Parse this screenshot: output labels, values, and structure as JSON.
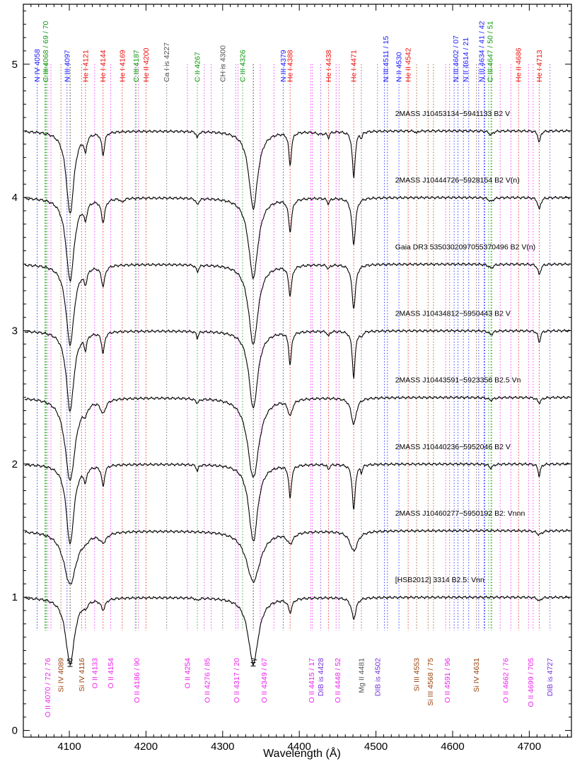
{
  "chart_data": {
    "type": "line",
    "xlabel": "Wavelength (Å)",
    "ylabel": "",
    "xlim": [
      4040,
      4755
    ],
    "ylim": [
      -0.05,
      5.45
    ],
    "x_ticks": [
      4100,
      4200,
      4300,
      4400,
      4500,
      4600,
      4700
    ],
    "y_ticks": [
      0,
      1,
      2,
      3,
      4,
      5
    ],
    "grid": false,
    "colors": {
      "N": "#1a1aff",
      "He": "#ee1111",
      "C": "#119911",
      "O": "#ee22ee",
      "Si": "#994411",
      "DIB": "#7733dd",
      "gray": "#555555",
      "black": "#000000"
    },
    "top_labels": [
      {
        "text": "N IV 4058",
        "x": 4058,
        "color": "N"
      },
      {
        "text": "C III 4068 / 69 / 70",
        "x": 4069,
        "color": "C"
      },
      {
        "text": "N III 4097",
        "x": 4097,
        "color": "N"
      },
      {
        "text": "He I 4121",
        "x": 4121,
        "color": "He"
      },
      {
        "text": "He I 4144",
        "x": 4144,
        "color": "He"
      },
      {
        "text": "He I 4169",
        "x": 4169,
        "color": "He"
      },
      {
        "text": "C III 4187",
        "x": 4187,
        "color": "C"
      },
      {
        "text": "He II 4200",
        "x": 4200,
        "color": "He"
      },
      {
        "text": "Ca I is 4227",
        "x": 4227,
        "color": "gray"
      },
      {
        "text": "C II 4267",
        "x": 4267,
        "color": "C"
      },
      {
        "text": "CH is 4300",
        "x": 4300,
        "color": "gray"
      },
      {
        "text": "C III 4326",
        "x": 4326,
        "color": "C"
      },
      {
        "text": "N III 4379",
        "x": 4379,
        "color": "N"
      },
      {
        "text": "He I 4388",
        "x": 4388,
        "color": "He"
      },
      {
        "text": "He I 4438",
        "x": 4438,
        "color": "He"
      },
      {
        "text": "He I 4471",
        "x": 4471,
        "color": "He"
      },
      {
        "text": "N III 4511 / 15",
        "x": 4513,
        "color": "N"
      },
      {
        "text": "N II 4530",
        "x": 4530,
        "color": "N"
      },
      {
        "text": "He II 4542",
        "x": 4542,
        "color": "He"
      },
      {
        "text": "N III 4602 / 07",
        "x": 4604,
        "color": "N"
      },
      {
        "text": "N II 4614 / 21",
        "x": 4617,
        "color": "N"
      },
      {
        "text": "N III 4634 / 41 / 42",
        "x": 4638,
        "color": "N"
      },
      {
        "text": "C III 4647 / 50 / 51",
        "x": 4649,
        "color": "C"
      },
      {
        "text": "He II 4686",
        "x": 4686,
        "color": "He"
      },
      {
        "text": "He I 4713",
        "x": 4713,
        "color": "He"
      }
    ],
    "bottom_labels": [
      {
        "text": "O II 4070 / 72 / 76",
        "x": 4072,
        "color": "O"
      },
      {
        "text": "Si IV 4089",
        "x": 4089,
        "color": "Si"
      },
      {
        "text": "Hδ",
        "x": 4101,
        "color": "black"
      },
      {
        "text": "Si IV 4116",
        "x": 4116,
        "color": "Si"
      },
      {
        "text": "O II 4133",
        "x": 4133,
        "color": "O"
      },
      {
        "text": "O II 4154",
        "x": 4154,
        "color": "O"
      },
      {
        "text": "O II 4186 / 90",
        "x": 4188,
        "color": "O"
      },
      {
        "text": "O II 4254",
        "x": 4254,
        "color": "O"
      },
      {
        "text": "O II 4276 / 85",
        "x": 4280,
        "color": "O"
      },
      {
        "text": "O II 4317 / 20",
        "x": 4318,
        "color": "O"
      },
      {
        "text": "Hγ",
        "x": 4340,
        "color": "black"
      },
      {
        "text": "O II 4349 / 67",
        "x": 4354,
        "color": "O"
      },
      {
        "text": "O II 4415 / 17",
        "x": 4416,
        "color": "O"
      },
      {
        "text": "DIB is 4428",
        "x": 4428,
        "color": "DIB"
      },
      {
        "text": "O II 4448 / 52",
        "x": 4450,
        "color": "O"
      },
      {
        "text": "Mg II 4481",
        "x": 4481,
        "color": "gray"
      },
      {
        "text": "DIB is 4502",
        "x": 4502,
        "color": "DIB"
      },
      {
        "text": "Si III 4553",
        "x": 4553,
        "color": "Si"
      },
      {
        "text": "Si III 4568 / 75",
        "x": 4571,
        "color": "Si"
      },
      {
        "text": "O II 4591 / 96",
        "x": 4593,
        "color": "O"
      },
      {
        "text": "Si IV 4631",
        "x": 4631,
        "color": "Si"
      },
      {
        "text": "O II 4662 / 76",
        "x": 4669,
        "color": "O"
      },
      {
        "text": "O II 4699 / 705",
        "x": 4702,
        "color": "O"
      },
      {
        "text": "DIB is 4727",
        "x": 4727,
        "color": "DIB"
      }
    ],
    "line_marks": [
      {
        "x": 4058,
        "color": "N"
      },
      {
        "x": 4068,
        "color": "C"
      },
      {
        "x": 4069,
        "color": "C"
      },
      {
        "x": 4070,
        "color": "C"
      },
      {
        "x": 4072,
        "color": "O"
      },
      {
        "x": 4076,
        "color": "O"
      },
      {
        "x": 4089,
        "color": "Si"
      },
      {
        "x": 4097,
        "color": "N"
      },
      {
        "x": 4101,
        "color": "black"
      },
      {
        "x": 4116,
        "color": "Si"
      },
      {
        "x": 4121,
        "color": "He"
      },
      {
        "x": 4133,
        "color": "O"
      },
      {
        "x": 4144,
        "color": "He"
      },
      {
        "x": 4154,
        "color": "O"
      },
      {
        "x": 4169,
        "color": "He"
      },
      {
        "x": 4186,
        "color": "O"
      },
      {
        "x": 4187,
        "color": "C"
      },
      {
        "x": 4190,
        "color": "O"
      },
      {
        "x": 4200,
        "color": "He"
      },
      {
        "x": 4227,
        "color": "gray"
      },
      {
        "x": 4254,
        "color": "O"
      },
      {
        "x": 4267,
        "color": "C"
      },
      {
        "x": 4276,
        "color": "O"
      },
      {
        "x": 4285,
        "color": "O"
      },
      {
        "x": 4300,
        "color": "gray"
      },
      {
        "x": 4317,
        "color": "O"
      },
      {
        "x": 4320,
        "color": "O"
      },
      {
        "x": 4326,
        "color": "C"
      },
      {
        "x": 4340,
        "color": "black"
      },
      {
        "x": 4349,
        "color": "O"
      },
      {
        "x": 4367,
        "color": "O"
      },
      {
        "x": 4379,
        "color": "N"
      },
      {
        "x": 4388,
        "color": "He"
      },
      {
        "x": 4415,
        "color": "O"
      },
      {
        "x": 4417,
        "color": "O"
      },
      {
        "x": 4428,
        "color": "DIB"
      },
      {
        "x": 4438,
        "color": "He"
      },
      {
        "x": 4448,
        "color": "O"
      },
      {
        "x": 4452,
        "color": "O"
      },
      {
        "x": 4471,
        "color": "He"
      },
      {
        "x": 4481,
        "color": "gray"
      },
      {
        "x": 4502,
        "color": "DIB"
      },
      {
        "x": 4511,
        "color": "N"
      },
      {
        "x": 4515,
        "color": "N"
      },
      {
        "x": 4530,
        "color": "N"
      },
      {
        "x": 4542,
        "color": "He"
      },
      {
        "x": 4553,
        "color": "Si"
      },
      {
        "x": 4568,
        "color": "Si"
      },
      {
        "x": 4575,
        "color": "Si"
      },
      {
        "x": 4591,
        "color": "O"
      },
      {
        "x": 4596,
        "color": "O"
      },
      {
        "x": 4602,
        "color": "N"
      },
      {
        "x": 4607,
        "color": "N"
      },
      {
        "x": 4614,
        "color": "N"
      },
      {
        "x": 4621,
        "color": "N"
      },
      {
        "x": 4631,
        "color": "Si"
      },
      {
        "x": 4634,
        "color": "N"
      },
      {
        "x": 4641,
        "color": "N"
      },
      {
        "x": 4642,
        "color": "N"
      },
      {
        "x": 4647,
        "color": "C"
      },
      {
        "x": 4650,
        "color": "C"
      },
      {
        "x": 4651,
        "color": "C"
      },
      {
        "x": 4662,
        "color": "O"
      },
      {
        "x": 4676,
        "color": "O"
      },
      {
        "x": 4686,
        "color": "He"
      },
      {
        "x": 4699,
        "color": "O"
      },
      {
        "x": 4705,
        "color": "O"
      },
      {
        "x": 4713,
        "color": "He"
      },
      {
        "x": 4727,
        "color": "DIB"
      }
    ],
    "series": [
      {
        "name": "2MASS J10453134−5941133   B2 V",
        "offset": 4.5,
        "lines": [
          {
            "x": 4101,
            "d": 0.62,
            "w": 6
          },
          {
            "x": 4340,
            "d": 0.58,
            "w": 7
          },
          {
            "x": 4121,
            "d": 0.12,
            "w": 2
          },
          {
            "x": 4144,
            "d": 0.17,
            "w": 2.2
          },
          {
            "x": 4388,
            "d": 0.25,
            "w": 2
          },
          {
            "x": 4471,
            "d": 0.35,
            "w": 2.2
          },
          {
            "x": 4713,
            "d": 0.09,
            "w": 1.8
          },
          {
            "x": 4267,
            "d": 0.05,
            "w": 1.5
          },
          {
            "x": 4438,
            "d": 0.04,
            "w": 1.5
          },
          {
            "x": 4481,
            "d": 0.04,
            "w": 1.5
          },
          {
            "x": 4553,
            "d": 0.02,
            "w": 1.2
          },
          {
            "x": 4650,
            "d": 0.03,
            "w": 3
          },
          {
            "x": 4428,
            "d": 0.02,
            "w": 8
          }
        ]
      },
      {
        "name": "2MASS J10444726−5928154   B2 V(n)",
        "offset": 4.0,
        "lines": [
          {
            "x": 4101,
            "d": 0.62,
            "w": 6.5
          },
          {
            "x": 4340,
            "d": 0.6,
            "w": 7.5
          },
          {
            "x": 4121,
            "d": 0.12,
            "w": 2.5
          },
          {
            "x": 4144,
            "d": 0.17,
            "w": 2.8
          },
          {
            "x": 4388,
            "d": 0.24,
            "w": 2.5
          },
          {
            "x": 4471,
            "d": 0.35,
            "w": 2.8
          },
          {
            "x": 4713,
            "d": 0.09,
            "w": 2.2
          },
          {
            "x": 4267,
            "d": 0.05,
            "w": 2
          },
          {
            "x": 4438,
            "d": 0.04,
            "w": 2
          },
          {
            "x": 4169,
            "d": 0.03,
            "w": 2
          },
          {
            "x": 4650,
            "d": 0.03,
            "w": 3.5
          }
        ]
      },
      {
        "name": "Gaia DR3 5350302097055370496   B2 V(n)",
        "offset": 3.5,
        "lines": [
          {
            "x": 4101,
            "d": 0.6,
            "w": 6.5
          },
          {
            "x": 4340,
            "d": 0.6,
            "w": 7.5
          },
          {
            "x": 4121,
            "d": 0.1,
            "w": 2.5
          },
          {
            "x": 4144,
            "d": 0.15,
            "w": 2.8
          },
          {
            "x": 4388,
            "d": 0.22,
            "w": 2.5
          },
          {
            "x": 4471,
            "d": 0.33,
            "w": 2.8
          },
          {
            "x": 4713,
            "d": 0.08,
            "w": 2.2
          },
          {
            "x": 4267,
            "d": 0.05,
            "w": 2
          },
          {
            "x": 4438,
            "d": 0.03,
            "w": 2
          },
          {
            "x": 4650,
            "d": 0.03,
            "w": 3.5
          }
        ]
      },
      {
        "name": "2MASS J10434812−5950443   B2 V",
        "offset": 3.0,
        "lines": [
          {
            "x": 4101,
            "d": 0.6,
            "w": 6
          },
          {
            "x": 4340,
            "d": 0.58,
            "w": 7
          },
          {
            "x": 4121,
            "d": 0.1,
            "w": 2
          },
          {
            "x": 4144,
            "d": 0.16,
            "w": 2.2
          },
          {
            "x": 4388,
            "d": 0.25,
            "w": 2
          },
          {
            "x": 4471,
            "d": 0.35,
            "w": 2.2
          },
          {
            "x": 4713,
            "d": 0.09,
            "w": 1.8
          },
          {
            "x": 4267,
            "d": 0.05,
            "w": 1.5
          },
          {
            "x": 4438,
            "d": 0.04,
            "w": 1.5
          },
          {
            "x": 4481,
            "d": 0.04,
            "w": 1.5
          },
          {
            "x": 4650,
            "d": 0.03,
            "w": 3
          }
        ]
      },
      {
        "name": "2MASS J10443591−5923356   B2.5 Vn",
        "offset": 2.5,
        "lines": [
          {
            "x": 4101,
            "d": 0.62,
            "w": 8
          },
          {
            "x": 4340,
            "d": 0.6,
            "w": 9
          },
          {
            "x": 4121,
            "d": 0.06,
            "w": 3.5
          },
          {
            "x": 4144,
            "d": 0.1,
            "w": 4
          },
          {
            "x": 4388,
            "d": 0.12,
            "w": 3.5
          },
          {
            "x": 4471,
            "d": 0.2,
            "w": 4
          },
          {
            "x": 4713,
            "d": 0.04,
            "w": 3
          },
          {
            "x": 4267,
            "d": 0.03,
            "w": 3
          },
          {
            "x": 4650,
            "d": 0.02,
            "w": 4
          }
        ]
      },
      {
        "name": "2MASS J10440236−5952046   B2 V",
        "offset": 2.0,
        "lines": [
          {
            "x": 4101,
            "d": 0.6,
            "w": 6
          },
          {
            "x": 4340,
            "d": 0.58,
            "w": 7
          },
          {
            "x": 4121,
            "d": 0.1,
            "w": 2
          },
          {
            "x": 4144,
            "d": 0.16,
            "w": 2.2
          },
          {
            "x": 4388,
            "d": 0.25,
            "w": 2
          },
          {
            "x": 4471,
            "d": 0.35,
            "w": 2.2
          },
          {
            "x": 4713,
            "d": 0.09,
            "w": 1.8
          },
          {
            "x": 4267,
            "d": 0.05,
            "w": 1.5
          },
          {
            "x": 4438,
            "d": 0.04,
            "w": 1.5
          },
          {
            "x": 4481,
            "d": 0.05,
            "w": 1.5
          },
          {
            "x": 4650,
            "d": 0.03,
            "w": 3
          }
        ]
      },
      {
        "name": "2MASS J10460277−5950192   B2: Vnnn",
        "offset": 1.5,
        "lines": [
          {
            "x": 4101,
            "d": 0.4,
            "w": 10
          },
          {
            "x": 4340,
            "d": 0.38,
            "w": 11
          },
          {
            "x": 4121,
            "d": 0.03,
            "w": 5
          },
          {
            "x": 4144,
            "d": 0.07,
            "w": 5.5
          },
          {
            "x": 4388,
            "d": 0.08,
            "w": 5
          },
          {
            "x": 4471,
            "d": 0.15,
            "w": 6
          },
          {
            "x": 4713,
            "d": 0.03,
            "w": 4
          }
        ]
      },
      {
        "name": "[HSB2012] 3314   B2.5: Vnn",
        "offset": 1.0,
        "lines": [
          {
            "x": 4101,
            "d": 0.5,
            "w": 7
          },
          {
            "x": 4340,
            "d": 0.5,
            "w": 8
          },
          {
            "x": 4121,
            "d": 0.04,
            "w": 3
          },
          {
            "x": 4144,
            "d": 0.08,
            "w": 3.5
          },
          {
            "x": 4388,
            "d": 0.1,
            "w": 3
          },
          {
            "x": 4471,
            "d": 0.16,
            "w": 3.5
          },
          {
            "x": 4713,
            "d": 0.03,
            "w": 2.5
          },
          {
            "x": 4267,
            "d": 0.02,
            "w": 2
          }
        ]
      }
    ]
  }
}
